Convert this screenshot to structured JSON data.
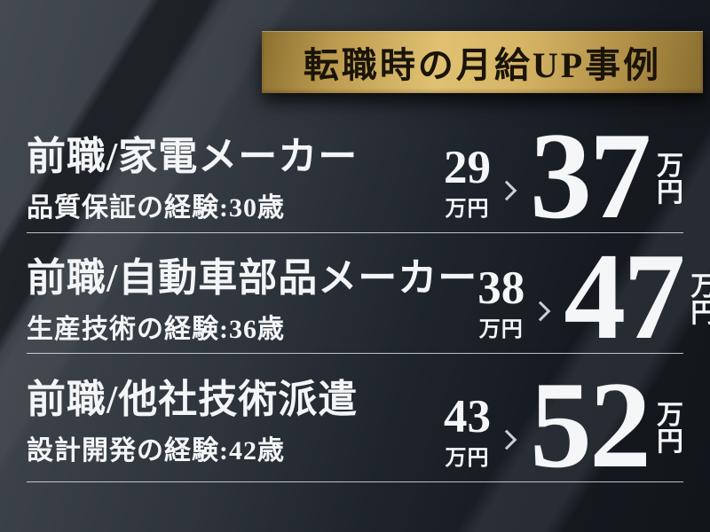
{
  "header": {
    "title": "転職時の月給UP事例"
  },
  "cases": [
    {
      "company": "前職/家電メーカー",
      "experience": "品質保証の経験:30歳",
      "salary_before": "29",
      "salary_before_unit": "万円",
      "salary_after": "37",
      "salary_after_unit_chars": [
        "万",
        "円"
      ]
    },
    {
      "company": "前職/自動車部品メーカー",
      "experience": "生産技術の経験:36歳",
      "salary_before": "38",
      "salary_before_unit": "万円",
      "salary_after": "47",
      "salary_after_unit_chars": [
        "万",
        "円"
      ]
    },
    {
      "company": "前職/他社技術派遣",
      "experience": "設計開発の経験:42歳",
      "salary_before": "43",
      "salary_before_unit": "万円",
      "salary_after": "52",
      "salary_after_unit_chars": [
        "万",
        "円"
      ]
    }
  ],
  "icons": {
    "increase_arrow": "chevron-right-icon"
  },
  "colors": {
    "gold_light": "#e0c172",
    "gold_dark": "#8c7030",
    "title_text": "#1a1408",
    "body_text": "#f3f5f6",
    "background_light": "#444a51",
    "background_dark": "#12161b",
    "divider": "#dfe5eb",
    "chevron": "#c9cfd5"
  }
}
